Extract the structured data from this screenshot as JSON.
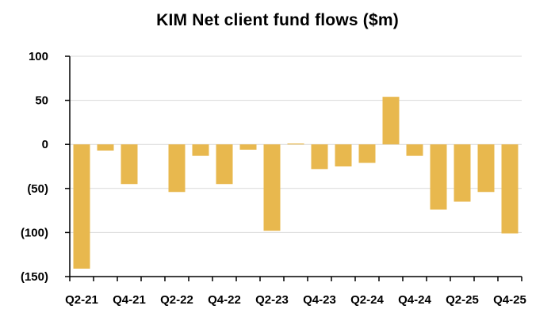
{
  "chart_data": {
    "type": "bar",
    "title": "KIM Net client fund flows ($m)",
    "xlabel": "",
    "ylabel": "",
    "ylim": [
      -150,
      100
    ],
    "yticks": [
      100,
      50,
      0,
      -50,
      -100,
      -150
    ],
    "ytick_labels": [
      "100",
      "50",
      "0",
      "(50)",
      "(100)",
      "(150)"
    ],
    "categories": [
      "Q2-21",
      "Q3-21",
      "Q4-21",
      "Q1-22",
      "Q2-22",
      "Q3-22",
      "Q4-22",
      "Q1-23",
      "Q2-23",
      "Q3-23",
      "Q4-23",
      "Q1-24",
      "Q2-24",
      "Q3-24",
      "Q4-24",
      "Q1-25",
      "Q2-25",
      "Q3-25",
      "Q4-25"
    ],
    "xtick_labels": [
      "Q2-21",
      "Q4-21",
      "Q2-22",
      "Q4-22",
      "Q2-23",
      "Q4-23",
      "Q2-24",
      "Q4-24",
      "Q2-25",
      "Q4-25"
    ],
    "values": [
      -141,
      -7,
      -45,
      0,
      -54,
      -13,
      -45,
      -6,
      -98,
      1,
      -28,
      -25,
      -21,
      54,
      -13,
      -74,
      -65,
      -54,
      -101
    ],
    "bar_color": "#E8B84E",
    "grid": true,
    "grid_color": "#d9d9d9",
    "legend": "none"
  }
}
